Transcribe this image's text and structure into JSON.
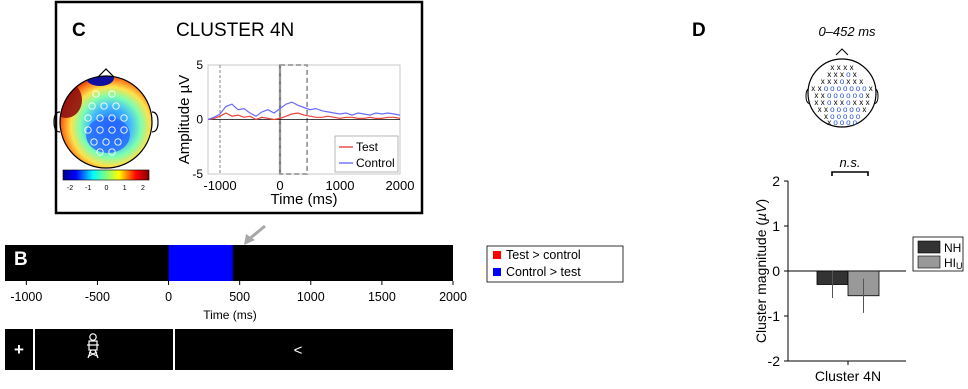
{
  "panels": {
    "c_letter": "C",
    "b_letter": "B",
    "d_letter": "D"
  },
  "panel_c": {
    "title": "CLUSTER 4N",
    "topo_colorbar_ticks": [
      "-2",
      "-1",
      "0",
      "1",
      "2"
    ],
    "colors": {
      "test": "#e8443a",
      "control": "#6b6bff",
      "window": "#999999"
    }
  },
  "panel_b": {
    "timeline_ticks": [
      "-1000",
      "-500",
      "0",
      "500",
      "1000",
      "1500",
      "2000"
    ],
    "timeline_xlabel": "Time (ms)",
    "legend": [
      {
        "label": "Test > control",
        "color": "#ff0000"
      },
      {
        "label": "Control > test",
        "color": "#0000ff"
      }
    ],
    "cluster": {
      "start_ms": 0,
      "end_ms": 452,
      "color": "#0000ff"
    },
    "stim_fixation": "+",
    "stim_arrow": "<"
  },
  "panel_d": {
    "window_label": "0–452 ms",
    "significance": "n.s.",
    "colors": {
      "NH": "#333333",
      "HIU": "#999999"
    }
  },
  "chart_data": [
    {
      "type": "line",
      "panel": "C",
      "xlabel": "Time (ms)",
      "ylabel": "Amplitude µV",
      "xlim": [
        -1200,
        2000
      ],
      "ylim": [
        -5,
        5
      ],
      "xticks": [
        "-1000",
        "0",
        "1000",
        "2000"
      ],
      "yticks": [
        "5",
        "0",
        "-5"
      ],
      "series": [
        {
          "name": "Test",
          "x": [
            -1200,
            -1100,
            -1000,
            -900,
            -800,
            -700,
            -600,
            -500,
            -400,
            -300,
            -200,
            -100,
            0,
            100,
            200,
            300,
            400,
            500,
            600,
            700,
            800,
            900,
            1000,
            1100,
            1200,
            1300,
            1400,
            1500,
            1600,
            1700,
            1800,
            1900,
            2000
          ],
          "values": [
            0.0,
            0.1,
            0.3,
            0.6,
            0.3,
            0.4,
            0.2,
            0.3,
            0.0,
            0.2,
            0.1,
            0.0,
            0.1,
            0.3,
            0.5,
            0.6,
            0.4,
            0.3,
            0.2,
            0.2,
            0.3,
            0.2,
            0.1,
            0.2,
            0.2,
            0.1,
            0.1,
            0.2,
            0.1,
            0.1,
            0.2,
            0.2,
            0.1
          ]
        },
        {
          "name": "Control",
          "x": [
            -1200,
            -1100,
            -1000,
            -900,
            -800,
            -700,
            -600,
            -500,
            -400,
            -300,
            -200,
            -100,
            0,
            100,
            200,
            300,
            400,
            500,
            600,
            700,
            800,
            900,
            1000,
            1100,
            1200,
            1300,
            1400,
            1500,
            1600,
            1700,
            1800,
            1900,
            2000
          ],
          "values": [
            0.0,
            0.2,
            0.5,
            1.2,
            1.4,
            0.9,
            1.0,
            0.6,
            0.3,
            0.7,
            0.9,
            0.6,
            1.0,
            1.4,
            1.6,
            1.3,
            1.1,
            0.9,
            1.0,
            0.8,
            0.7,
            0.6,
            0.5,
            0.6,
            0.4,
            0.6,
            0.5,
            0.4,
            0.6,
            0.5,
            0.6,
            0.5,
            0.4
          ]
        }
      ],
      "markers": [
        {
          "x": -1000,
          "style": "dashed"
        },
        {
          "x": 0,
          "style": "solid"
        },
        {
          "x_start": 0,
          "x_end": 452,
          "style": "dashed-box"
        }
      ],
      "legend_placement": "bottom-right"
    },
    {
      "type": "bar",
      "panel": "D",
      "categories": [
        "Cluster 4N"
      ],
      "series": [
        {
          "name": "NH",
          "values": [
            -0.3
          ],
          "error": [
            0.3
          ]
        },
        {
          "name": "HIU",
          "values": [
            -0.55
          ],
          "error": [
            0.38
          ]
        }
      ],
      "xlabel": "",
      "ylabel": "Cluster magnitude (µV)",
      "ylim": [
        -2,
        2
      ],
      "yticks": [
        "2",
        "1",
        "0",
        "-1",
        "-2"
      ],
      "legend_placement": "right"
    }
  ]
}
